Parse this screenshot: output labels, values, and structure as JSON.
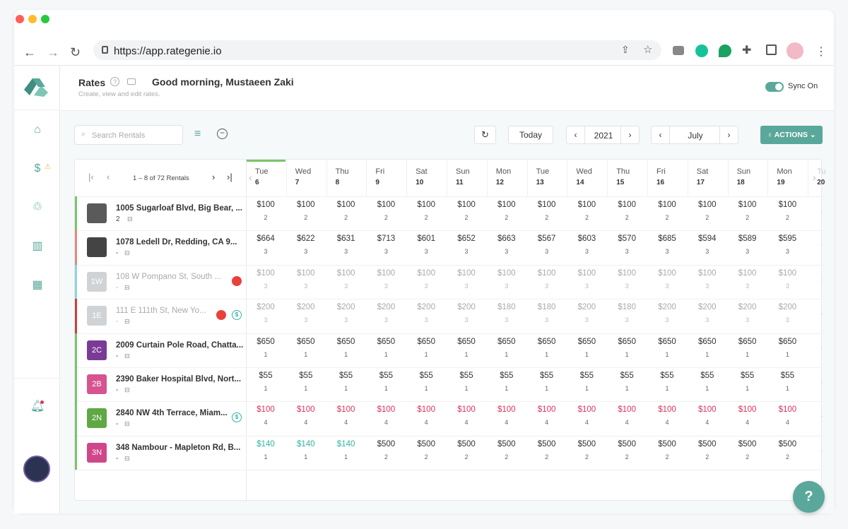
{
  "browser": {
    "url": "https://app.rategenie.io"
  },
  "header": {
    "title": "Rates",
    "greeting": "Good morning, Mustaeen Zaki",
    "subtitle": "Create, view and edit rates.",
    "sync_label": "Sync On"
  },
  "toolbar": {
    "search_placeholder": "Search Rentals",
    "today": "Today",
    "year": "2021",
    "month": "July",
    "actions": "ACTIONS"
  },
  "pager": {
    "label": "1 – 8 of 72 Rentals"
  },
  "days": [
    {
      "d": "Tue",
      "n": "6"
    },
    {
      "d": "Wed",
      "n": "7"
    },
    {
      "d": "Thu",
      "n": "8"
    },
    {
      "d": "Fri",
      "n": "9"
    },
    {
      "d": "Sat",
      "n": "10"
    },
    {
      "d": "Sun",
      "n": "11"
    },
    {
      "d": "Mon",
      "n": "12"
    },
    {
      "d": "Tue",
      "n": "13"
    },
    {
      "d": "Wed",
      "n": "14"
    },
    {
      "d": "Thu",
      "n": "15"
    },
    {
      "d": "Fri",
      "n": "16"
    },
    {
      "d": "Sat",
      "n": "17"
    },
    {
      "d": "Sun",
      "n": "18"
    },
    {
      "d": "Mon",
      "n": "19"
    },
    {
      "d": "Tu",
      "n": "20"
    }
  ],
  "rentals": [
    {
      "addr": "1005 Sugarloaf Blvd, Big Bear, ...",
      "sub": "2",
      "thumb": "",
      "thumb_color": "#5a5a5a",
      "bar": "#7cc36a",
      "badges": [],
      "faded": false,
      "prices": [
        "$100",
        "$100",
        "$100",
        "$100",
        "$100",
        "$100",
        "$100",
        "$100",
        "$100",
        "$100",
        "$100",
        "$100",
        "$100",
        "$100"
      ],
      "mins": [
        "2",
        "2",
        "2",
        "2",
        "2",
        "2",
        "2",
        "2",
        "2",
        "2",
        "2",
        "2",
        "2",
        "2"
      ],
      "price_color": "#333"
    },
    {
      "addr": "1078 Ledell Dr, Redding, CA 9...",
      "sub": "-",
      "thumb": "",
      "thumb_color": "#444",
      "bar": "#e08a80",
      "badges": [],
      "faded": false,
      "prices": [
        "$664",
        "$622",
        "$631",
        "$713",
        "$601",
        "$652",
        "$663",
        "$567",
        "$603",
        "$570",
        "$685",
        "$594",
        "$589",
        "$595"
      ],
      "mins": [
        "3",
        "3",
        "3",
        "3",
        "3",
        "3",
        "3",
        "3",
        "3",
        "3",
        "3",
        "3",
        "3",
        "3"
      ],
      "price_color": "#333"
    },
    {
      "addr": "108 W Pompano St, South ...",
      "sub": "-",
      "thumb": "1W",
      "thumb_color": "#d0d3d6",
      "bar": "#8fd3df",
      "badges": [
        "airbnb"
      ],
      "faded": true,
      "prices": [
        "$100",
        "$100",
        "$100",
        "$100",
        "$100",
        "$100",
        "$100",
        "$100",
        "$100",
        "$100",
        "$100",
        "$100",
        "$100",
        "$100"
      ],
      "mins": [
        "3",
        "3",
        "3",
        "3",
        "3",
        "3",
        "3",
        "3",
        "3",
        "3",
        "3",
        "3",
        "3",
        "3"
      ],
      "price_color": "#aaa"
    },
    {
      "addr": "111 E 111th St, New Yo...",
      "sub": "-",
      "thumb": "1E",
      "thumb_color": "#d0d3d6",
      "bar": "#c94040",
      "badges": [
        "airbnb",
        "dollar"
      ],
      "faded": true,
      "prices": [
        "$200",
        "$200",
        "$200",
        "$200",
        "$200",
        "$200",
        "$180",
        "$180",
        "$200",
        "$180",
        "$200",
        "$200",
        "$200",
        "$200"
      ],
      "mins": [
        "3",
        "3",
        "3",
        "3",
        "3",
        "3",
        "3",
        "3",
        "3",
        "3",
        "3",
        "3",
        "3",
        "3"
      ],
      "price_color": "#aaa"
    },
    {
      "addr": "2009 Curtain Pole Road, Chatta...",
      "sub": "-",
      "thumb": "2C",
      "thumb_color": "#7b3a96",
      "bar": "#7cc36a",
      "badges": [],
      "faded": false,
      "prices": [
        "$650",
        "$650",
        "$650",
        "$650",
        "$650",
        "$650",
        "$650",
        "$650",
        "$650",
        "$650",
        "$650",
        "$650",
        "$650",
        "$650"
      ],
      "mins": [
        "1",
        "1",
        "1",
        "1",
        "1",
        "1",
        "1",
        "1",
        "1",
        "1",
        "1",
        "1",
        "1",
        "1"
      ],
      "price_color": "#333"
    },
    {
      "addr": "2390 Baker Hospital Blvd, Nort...",
      "sub": "-",
      "thumb": "2B",
      "thumb_color": "#d6548f",
      "bar": "#7cc36a",
      "badges": [],
      "faded": false,
      "prices": [
        "$55",
        "$55",
        "$55",
        "$55",
        "$55",
        "$55",
        "$55",
        "$55",
        "$55",
        "$55",
        "$55",
        "$55",
        "$55",
        "$55"
      ],
      "mins": [
        "1",
        "1",
        "1",
        "1",
        "1",
        "1",
        "1",
        "1",
        "1",
        "1",
        "1",
        "1",
        "1",
        "1"
      ],
      "price_color": "#333"
    },
    {
      "addr": "2840 NW 4th Terrace, Miam...",
      "sub": "-",
      "thumb": "2N",
      "thumb_color": "#5fa844",
      "bar": "#7cc36a",
      "badges": [
        "dollar"
      ],
      "faded": false,
      "prices": [
        "$100",
        "$100",
        "$100",
        "$100",
        "$100",
        "$100",
        "$100",
        "$100",
        "$100",
        "$100",
        "$100",
        "$100",
        "$100",
        "$100"
      ],
      "mins": [
        "4",
        "4",
        "4",
        "4",
        "4",
        "4",
        "4",
        "4",
        "4",
        "4",
        "4",
        "4",
        "4",
        "4"
      ],
      "price_color": "#e0315b"
    },
    {
      "addr": "348 Nambour - Mapleton Rd, B...",
      "sub": "-",
      "thumb": "3N",
      "thumb_color": "#d0468a",
      "bar": "#7cc36a",
      "badges": [],
      "faded": false,
      "prices": [
        "$140",
        "$140",
        "$140",
        "$500",
        "$500",
        "$500",
        "$500",
        "$500",
        "$500",
        "$500",
        "$500",
        "$500",
        "$500",
        "$500"
      ],
      "mins": [
        "1",
        "1",
        "1",
        "2",
        "2",
        "2",
        "2",
        "2",
        "2",
        "2",
        "2",
        "2",
        "2",
        "2"
      ],
      "price_color": "#333",
      "teal_count": 3
    }
  ],
  "colors": {
    "accent": "#5aa89b",
    "red": "#e0315b",
    "teal": "#2fb5a4"
  }
}
